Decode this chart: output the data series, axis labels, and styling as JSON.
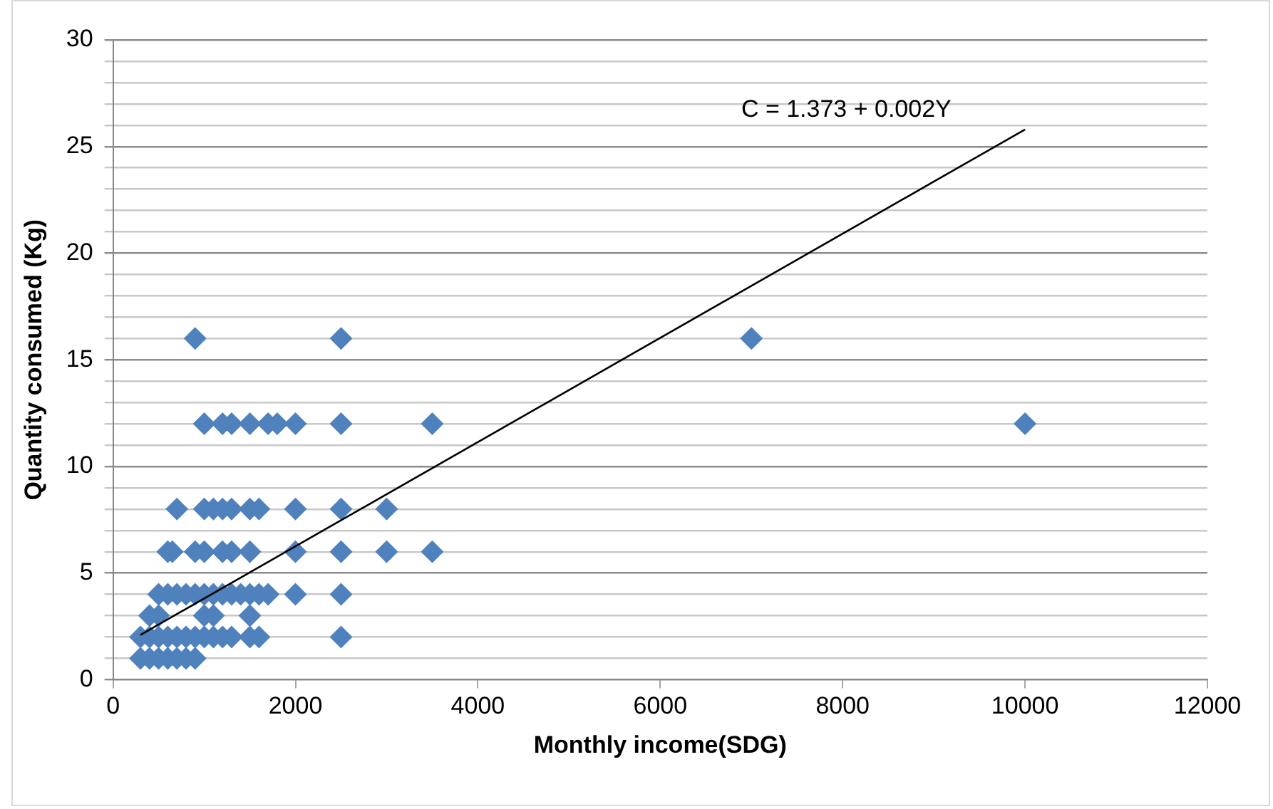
{
  "chart_data": {
    "type": "scatter",
    "xlabel": "Monthly income(SDG)",
    "ylabel": "Quantity consumed (Kg)",
    "grid": "y",
    "legend": false,
    "xlim": [
      0,
      12000
    ],
    "xticks": [
      0,
      2000,
      4000,
      6000,
      8000,
      10000,
      12000
    ],
    "ylim": [
      0,
      30
    ],
    "yticks": [
      0,
      {
        "value": 1,
        "label": null
      },
      {
        "value": 2,
        "label": null
      },
      {
        "value": 3,
        "label": null
      },
      {
        "value": 4,
        "label": null
      },
      5,
      {
        "value": 6,
        "label": null
      },
      {
        "value": 7,
        "label": null
      },
      {
        "value": 8,
        "label": null
      },
      {
        "value": 9,
        "label": null
      },
      10,
      {
        "value": 11,
        "label": null
      },
      {
        "value": 12,
        "label": null
      },
      {
        "value": 13,
        "label": null
      },
      {
        "value": 14,
        "label": null
      },
      15,
      {
        "value": 16,
        "label": null
      },
      {
        "value": 17,
        "label": null
      },
      {
        "value": 18,
        "label": null
      },
      {
        "value": 19,
        "label": null
      },
      20,
      {
        "value": 21,
        "label": null
      },
      {
        "value": 22,
        "label": null
      },
      {
        "value": 23,
        "label": null
      },
      {
        "value": 24,
        "label": null
      },
      25,
      {
        "value": 26,
        "label": null
      },
      {
        "value": 27,
        "label": null
      },
      {
        "value": 28,
        "label": null
      },
      {
        "value": 29,
        "label": null
      },
      30
    ],
    "series": [
      {
        "type": "scatter",
        "marker": "diamond",
        "color": "#4f81bd",
        "x": [
          900,
          2500,
          7000,
          1000,
          1200,
          1300,
          1500,
          1700,
          1800,
          2000,
          2500,
          3500,
          10000,
          700,
          1000,
          1100,
          1200,
          1300,
          1500,
          1600,
          2000,
          2500,
          3000,
          600,
          650,
          900,
          1000,
          1200,
          1300,
          1500,
          2000,
          2500,
          3000,
          3500,
          500,
          600,
          700,
          800,
          900,
          1000,
          1100,
          1200,
          1300,
          1400,
          1500,
          1600,
          1700,
          2000,
          2500,
          400,
          500,
          1000,
          1100,
          1500,
          300,
          400,
          500,
          600,
          700,
          800,
          900,
          1000,
          1100,
          1200,
          1300,
          1500,
          1600,
          2500,
          300,
          400,
          500,
          600,
          700,
          800,
          900
        ],
        "values": [
          16,
          16,
          16,
          12,
          12,
          12,
          12,
          12,
          12,
          12,
          12,
          12,
          12,
          8,
          8,
          8,
          8,
          8,
          8,
          8,
          8,
          8,
          8,
          6,
          6,
          6,
          6,
          6,
          6,
          6,
          6,
          6,
          6,
          6,
          4,
          4,
          4,
          4,
          4,
          4,
          4,
          4,
          4,
          4,
          4,
          4,
          4,
          4,
          4,
          3,
          3,
          3,
          3,
          3,
          2,
          2,
          2,
          2,
          2,
          2,
          2,
          2,
          2,
          2,
          2,
          2,
          2,
          2,
          1,
          1,
          1,
          1,
          1,
          1,
          1
        ]
      },
      {
        "type": "line",
        "color": "#000000",
        "x": [
          300,
          10000
        ],
        "values": [
          2.1,
          25.8
        ]
      }
    ],
    "annotations": [
      "C = 1.373 + 0.002Y"
    ]
  }
}
